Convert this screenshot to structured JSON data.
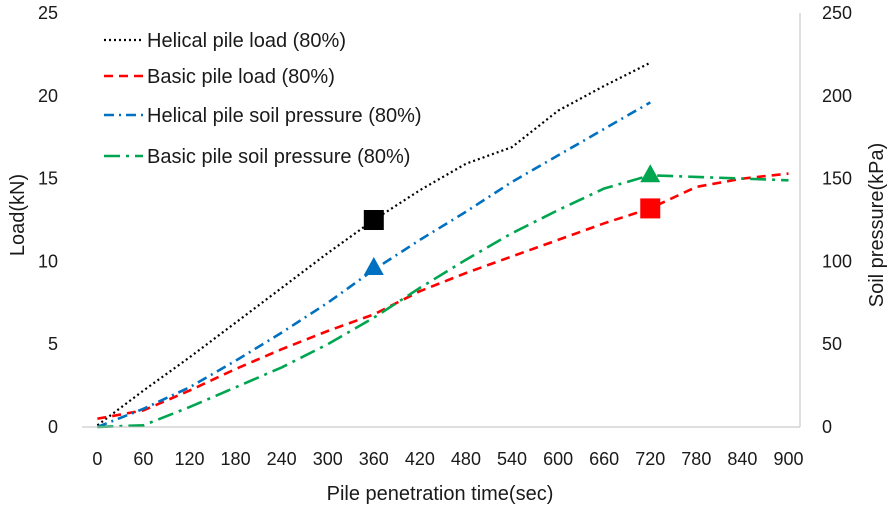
{
  "chart_data": {
    "type": "line",
    "xlabel": "Pile penetration time(sec)",
    "ylabel": "Load(kN)",
    "y2label": "Soil pressure(kPa)",
    "x_ticks": [
      0,
      60,
      120,
      180,
      240,
      300,
      360,
      420,
      480,
      540,
      600,
      660,
      720,
      780,
      840,
      900
    ],
    "y_ticks": [
      0,
      5,
      10,
      15,
      20,
      25
    ],
    "y2_ticks": [
      0,
      50,
      100,
      150,
      200,
      250
    ],
    "xlim": [
      -20,
      915
    ],
    "ylim": [
      0,
      25
    ],
    "y2lim": [
      0,
      250
    ],
    "grid": false,
    "legend_position": "top-left",
    "series": [
      {
        "name": "Helical pile load (80%)",
        "axis": "left",
        "color": "#000000",
        "dash": "dotted",
        "x": [
          0,
          60,
          120,
          180,
          240,
          300,
          360,
          420,
          480,
          540,
          600,
          660,
          720
        ],
        "y": [
          0.1,
          2.2,
          4.2,
          6.3,
          8.4,
          10.5,
          12.5,
          14.3,
          15.9,
          16.9,
          19.1,
          20.6,
          22.0
        ],
        "marker": {
          "x": 360,
          "y": 12.5,
          "shape": "square",
          "color": "#000000"
        }
      },
      {
        "name": "Basic pile load (80%)",
        "axis": "left",
        "color": "#ff0000",
        "dash": "dashed",
        "x": [
          0,
          60,
          120,
          180,
          240,
          300,
          360,
          420,
          480,
          540,
          600,
          660,
          720,
          780,
          840,
          900
        ],
        "y": [
          0.5,
          1.0,
          2.2,
          3.5,
          4.7,
          5.8,
          6.8,
          8.2,
          9.3,
          10.3,
          11.3,
          12.3,
          13.2,
          14.5,
          15.0,
          15.3
        ],
        "marker": {
          "x": 720,
          "y": 13.2,
          "shape": "square",
          "color": "#ff0000"
        }
      },
      {
        "name": "Helical pile soil pressure (80%)",
        "axis": "right",
        "color": "#0070c0",
        "dash": "dash-dot",
        "x": [
          0,
          60,
          120,
          180,
          240,
          300,
          360,
          420,
          480,
          540,
          600,
          660,
          720
        ],
        "y": [
          0,
          11,
          24,
          40,
          57,
          75,
          95,
          113,
          130,
          148,
          164,
          180,
          196
        ],
        "marker": {
          "x": 360,
          "y": 96,
          "shape": "triangle",
          "color": "#0070c0"
        }
      },
      {
        "name": "Basic pile soil pressure (80%)",
        "axis": "right",
        "color": "#00a550",
        "dash": "long-dash-dot",
        "x": [
          0,
          60,
          120,
          180,
          240,
          300,
          360,
          420,
          480,
          540,
          600,
          660,
          720,
          780,
          840,
          900
        ],
        "y": [
          0,
          1,
          12,
          24,
          36,
          50,
          66,
          84,
          101,
          117,
          131,
          144,
          152,
          151,
          150,
          149
        ],
        "marker": {
          "x": 720,
          "y": 152,
          "shape": "triangle",
          "color": "#00a550"
        }
      }
    ]
  }
}
